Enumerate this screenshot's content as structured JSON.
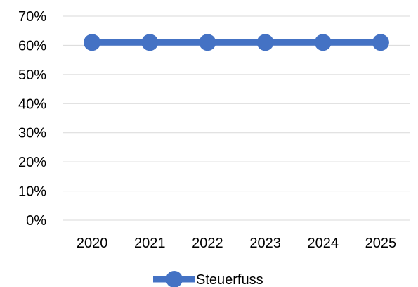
{
  "chart_data": {
    "type": "line",
    "categories": [
      "2020",
      "2021",
      "2022",
      "2023",
      "2024",
      "2025"
    ],
    "series": [
      {
        "name": "Steuerfuss",
        "values": [
          61,
          61,
          61,
          61,
          61,
          61
        ]
      }
    ],
    "ylim": [
      0,
      70
    ],
    "yticks": [
      0,
      10,
      20,
      30,
      40,
      50,
      60,
      70
    ],
    "ytick_labels": [
      "0%",
      "10%",
      "20%",
      "30%",
      "40%",
      "50%",
      "60%",
      "70%"
    ],
    "grid": true,
    "legend_position": "bottom",
    "colors": {
      "series": "#4472C4",
      "grid": "#D9D9D9"
    }
  }
}
